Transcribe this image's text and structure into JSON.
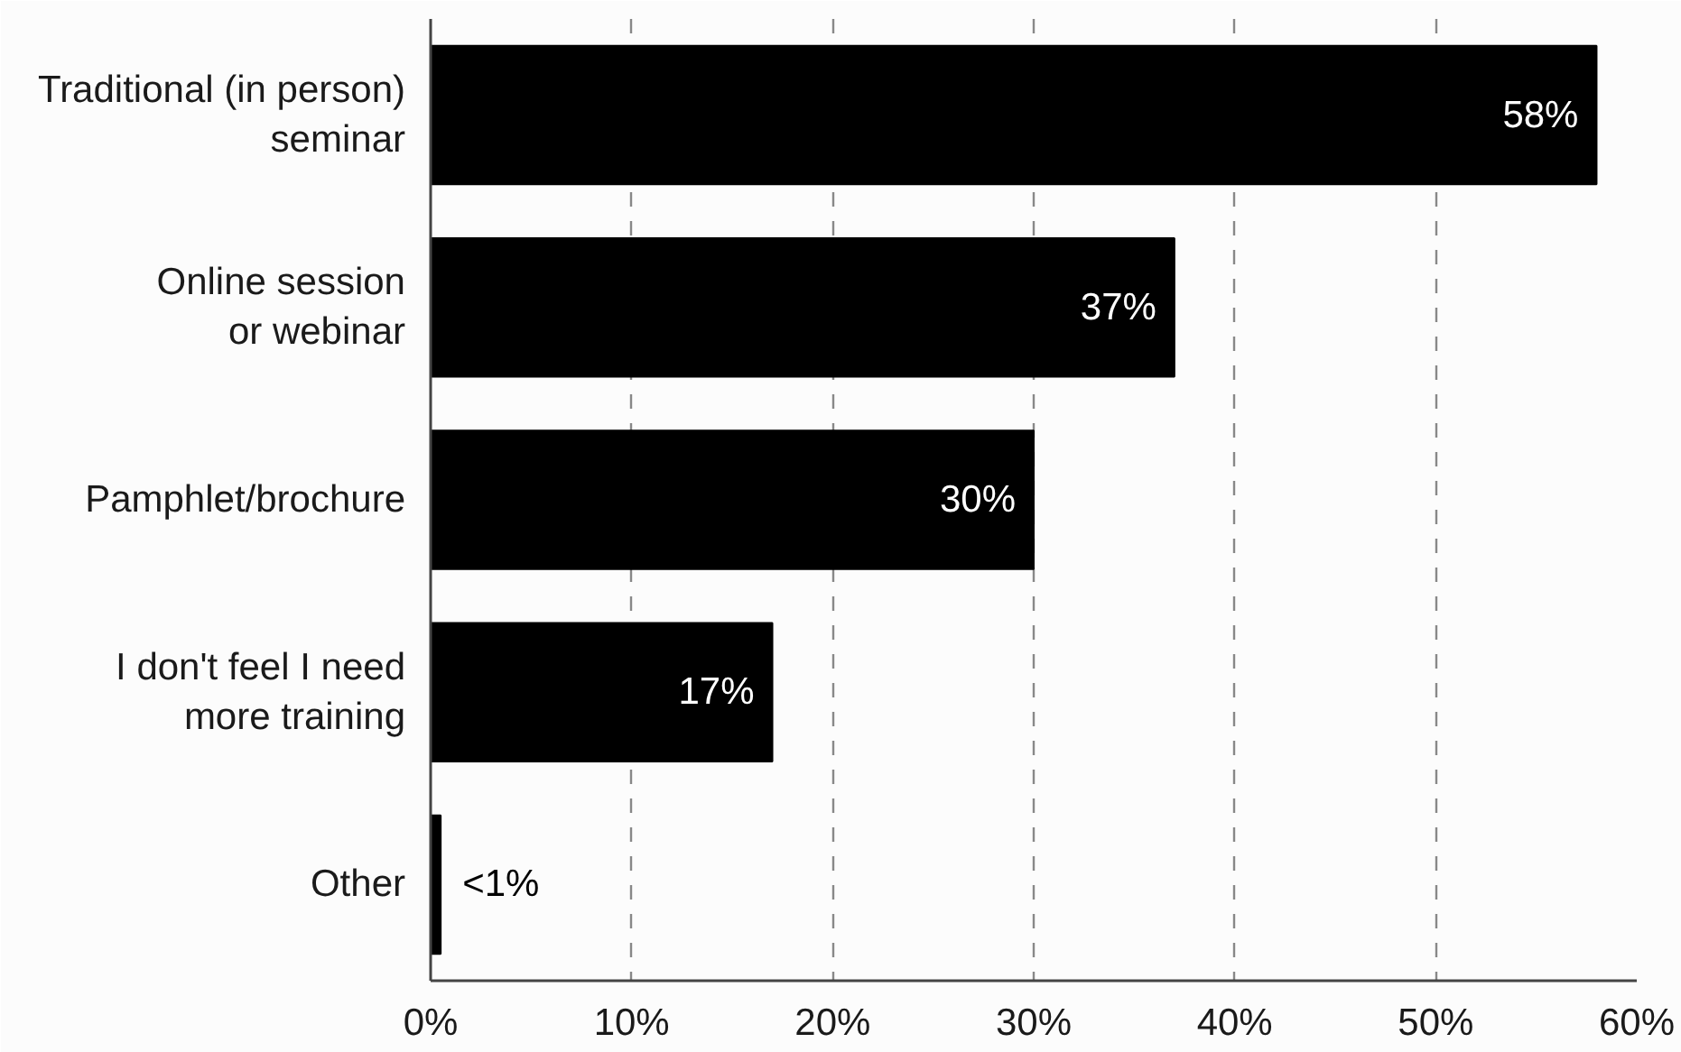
{
  "chart_data": {
    "type": "bar",
    "orientation": "horizontal",
    "categories": [
      "Traditional (in person)\nseminar",
      "Online session\nor webinar",
      "Pamphlet/brochure",
      "I don't feel I need\nmore training",
      "Other"
    ],
    "values": [
      58,
      37,
      30,
      17,
      0.5
    ],
    "value_labels": [
      "58%",
      "37%",
      "30%",
      "17%",
      "<1%"
    ],
    "color": "#000000",
    "xlim": [
      0,
      60
    ],
    "xticks": [
      {
        "value": 0,
        "label": "0%"
      },
      {
        "value": 10,
        "label": "10%"
      },
      {
        "value": 20,
        "label": "20%"
      },
      {
        "value": 30,
        "label": "30%"
      },
      {
        "value": 40,
        "label": "40%"
      },
      {
        "value": 50,
        "label": "50%"
      },
      {
        "value": 60,
        "label": "60%"
      }
    ],
    "grid": "x"
  }
}
